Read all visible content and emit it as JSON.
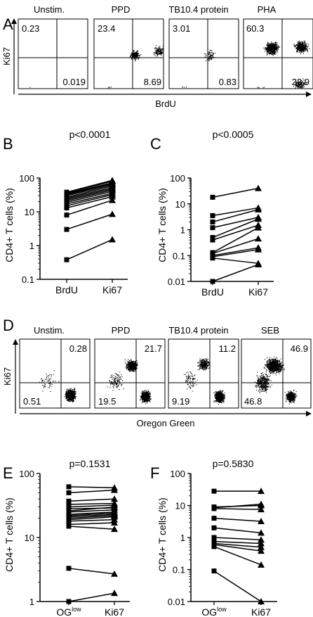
{
  "panel_letters": {
    "A": "A",
    "B": "B",
    "C": "C",
    "D": "D",
    "E": "E",
    "F": "F"
  },
  "panelA": {
    "ylabel": "Ki67",
    "xlabel": "BrdU",
    "plots": [
      {
        "title": "Unstim.",
        "values": {
          "tl": "0.23",
          "br": "0.019"
        }
      },
      {
        "title": "PPD",
        "values": {
          "tl": "23.4",
          "br": "8.69"
        }
      },
      {
        "title": "TB10.4 protein",
        "values": {
          "tl": "3.01",
          "br": "0.83"
        }
      },
      {
        "title": "PHA",
        "values": {
          "tl": "60.3",
          "br": "22.9"
        }
      }
    ]
  },
  "panelD": {
    "ylabel": "Ki67",
    "xlabel": "Oregon Green",
    "plots": [
      {
        "title": "Unstim.",
        "values": {
          "tr": "0.28",
          "bl": "0.51"
        }
      },
      {
        "title": "PPD",
        "values": {
          "tr": "21.7",
          "bl": "19.5"
        }
      },
      {
        "title": "TB10.4 protein",
        "values": {
          "tr": "11.2",
          "bl": "9.19"
        }
      },
      {
        "title": "SEB",
        "values": {
          "tr": "46.9",
          "bl": "46.8"
        }
      }
    ]
  },
  "chart_data": [
    {
      "panel": "B",
      "type": "line",
      "title": "p<0.0001",
      "ylabel": "CD4+ T cells (%)",
      "categories": [
        "BrdU",
        "Ki67"
      ],
      "yscale": "log",
      "ylim": [
        0.1,
        100
      ],
      "yticks": [
        "0.1",
        "1",
        "10",
        "100"
      ],
      "pairs": [
        [
          0.38,
          1.5
        ],
        [
          3,
          8.5
        ],
        [
          8,
          22
        ],
        [
          13,
          28
        ],
        [
          15,
          32
        ],
        [
          17,
          35
        ],
        [
          19,
          40
        ],
        [
          21,
          44
        ],
        [
          23,
          48
        ],
        [
          25,
          52
        ],
        [
          27,
          58
        ],
        [
          30,
          63
        ],
        [
          32,
          68
        ],
        [
          34,
          72
        ],
        [
          36,
          80
        ],
        [
          38,
          85
        ]
      ]
    },
    {
      "panel": "C",
      "type": "line",
      "title": "p<0.0005",
      "ylabel": "CD4+ T cells (%)",
      "categories": [
        "BrdU",
        "Ki67"
      ],
      "yscale": "log",
      "ylim": [
        0.01,
        100
      ],
      "yticks": [
        "0.01",
        "0.1",
        "1",
        "10",
        "100"
      ],
      "pairs": [
        [
          18,
          40
        ],
        [
          3.5,
          7
        ],
        [
          2,
          6
        ],
        [
          1.2,
          3
        ],
        [
          0.5,
          2.6
        ],
        [
          0.4,
          1.5
        ],
        [
          0.13,
          1.2
        ],
        [
          0.12,
          0.45
        ],
        [
          0.1,
          0.2
        ],
        [
          0.09,
          0.17
        ],
        [
          0.08,
          0.05
        ],
        [
          0.01,
          0.045
        ]
      ]
    },
    {
      "panel": "E",
      "type": "line",
      "title": "p=0.1531",
      "ylabel": "CD4+ T cells (%)",
      "categories": [
        "OG|low",
        "Ki67"
      ],
      "yscale": "log",
      "ylim": [
        1,
        100
      ],
      "yticks": [
        "1",
        "10",
        "100"
      ],
      "pairs": [
        [
          62,
          60
        ],
        [
          50,
          55
        ],
        [
          37,
          40
        ],
        [
          33,
          34
        ],
        [
          30,
          32
        ],
        [
          28,
          29
        ],
        [
          26,
          30
        ],
        [
          25,
          27
        ],
        [
          23,
          25
        ],
        [
          22,
          24
        ],
        [
          21,
          23
        ],
        [
          20,
          22
        ],
        [
          19,
          21
        ],
        [
          18,
          19
        ],
        [
          16,
          17
        ],
        [
          15,
          13.5
        ],
        [
          3.3,
          2.7
        ],
        [
          1,
          1.35
        ]
      ]
    },
    {
      "panel": "F",
      "type": "line",
      "title": "p=0.5830",
      "ylabel": "CD4+ T cells (%)",
      "categories": [
        "OG|low",
        "Ki67"
      ],
      "yscale": "log",
      "ylim": [
        0.01,
        100
      ],
      "yticks": [
        "0.01",
        "0.1",
        "1",
        "10",
        "100"
      ],
      "pairs": [
        [
          28,
          28
        ],
        [
          9,
          10
        ],
        [
          8.5,
          11
        ],
        [
          8,
          7.5
        ],
        [
          4,
          3.2
        ],
        [
          2,
          1.4
        ],
        [
          1,
          0.85
        ],
        [
          0.75,
          0.65
        ],
        [
          0.65,
          0.5
        ],
        [
          0.6,
          0.38
        ],
        [
          0.52,
          0.14
        ],
        [
          0.09,
          0.01
        ]
      ]
    }
  ]
}
